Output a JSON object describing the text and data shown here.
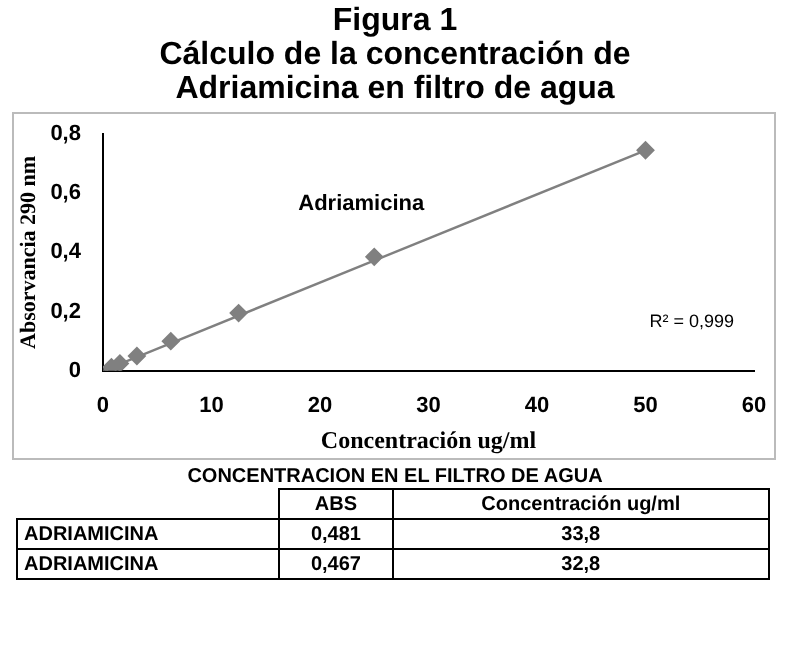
{
  "chart_data": {
    "type": "scatter",
    "title": "Figura 1\nCálculo de la concentración de\nAdriamicina en filtro de agua",
    "xlabel": "Concentración ug/ml",
    "ylabel": "Absorvancia 290 nm",
    "series": [
      {
        "name": "Adriamicina",
        "marker": "diamond",
        "color": "#808080",
        "x": [
          0.78,
          1.56,
          3.125,
          6.25,
          12.5,
          25,
          50
        ],
        "values": [
          0.012,
          0.025,
          0.05,
          0.1,
          0.195,
          0.385,
          0.745
        ]
      },
      {
        "type": "line",
        "marker": "none",
        "color": "#808080",
        "x": [
          0,
          50
        ],
        "values": [
          0,
          0.745
        ]
      }
    ],
    "xlim": [
      0,
      60
    ],
    "xticks": [
      0,
      10,
      20,
      30,
      40,
      50,
      60
    ],
    "ylim": [
      0,
      0.8
    ],
    "yticks": [
      0,
      {
        "value": 0.2,
        "label": "0,2"
      },
      {
        "value": 0.4,
        "label": "0,4"
      },
      {
        "value": 0.6,
        "label": "0,6"
      },
      {
        "value": 0.8,
        "label": "0,8"
      }
    ],
    "grid": false,
    "legend": false,
    "annotations": [
      "R² = 0,999",
      "CONCENTRACION EN EL FILTRO DE AGUA",
      "ABS",
      "Concentración ug/ml",
      "ADRIAMICINA",
      "0,481",
      "33,8",
      "ADRIAMICINA",
      "0,467",
      "32,8"
    ]
  }
}
